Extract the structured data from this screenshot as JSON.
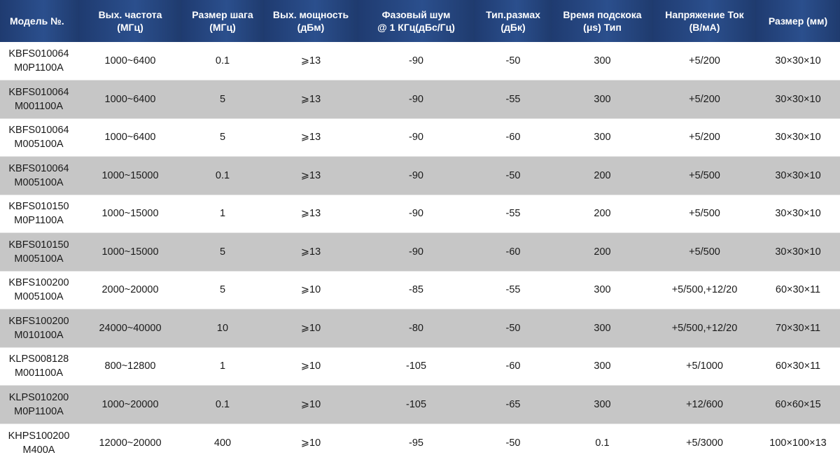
{
  "header": [
    [
      "Модель №."
    ],
    [
      "Вых. частота",
      "(МГц)"
    ],
    [
      "Размер шага",
      "(МГц)"
    ],
    [
      "Вых. мощность",
      "(дБм)"
    ],
    [
      "Фазовый шум",
      "@ 1 КГц(дБс/Гц)"
    ],
    [
      "Тип.размах",
      "(дБк)"
    ],
    [
      "Время подскока",
      "(μs) Тип"
    ],
    [
      "Напряжение Ток",
      "(В/мА)"
    ],
    [
      "Размер (мм)"
    ]
  ],
  "rows": [
    {
      "model": [
        "KBFS010064",
        "M0P1100A"
      ],
      "freq": "1000~6400",
      "step": "0.1",
      "power": "⩾13",
      "phase_noise": "-90",
      "spur": "-50",
      "hop_time": "300",
      "voltage_current": "+5/200",
      "size": "30×30×10"
    },
    {
      "model": [
        "KBFS010064",
        "M001100A"
      ],
      "freq": "1000~6400",
      "step": "5",
      "power": "⩾13",
      "phase_noise": "-90",
      "spur": "-55",
      "hop_time": "300",
      "voltage_current": "+5/200",
      "size": "30×30×10"
    },
    {
      "model": [
        "KBFS010064",
        "M005100A"
      ],
      "freq": "1000~6400",
      "step": "5",
      "power": "⩾13",
      "phase_noise": "-90",
      "spur": "-60",
      "hop_time": "300",
      "voltage_current": "+5/200",
      "size": "30×30×10"
    },
    {
      "model": [
        "KBFS010064",
        "M005100A"
      ],
      "freq": "1000~15000",
      "step": "0.1",
      "power": "⩾13",
      "phase_noise": "-90",
      "spur": "-50",
      "hop_time": "200",
      "voltage_current": "+5/500",
      "size": "30×30×10"
    },
    {
      "model": [
        "KBFS010150",
        "M0P1100A"
      ],
      "freq": "1000~15000",
      "step": "1",
      "power": "⩾13",
      "phase_noise": "-90",
      "spur": "-55",
      "hop_time": "200",
      "voltage_current": "+5/500",
      "size": "30×30×10"
    },
    {
      "model": [
        "KBFS010150",
        "M005100A"
      ],
      "freq": "1000~15000",
      "step": "5",
      "power": "⩾13",
      "phase_noise": "-90",
      "spur": "-60",
      "hop_time": "200",
      "voltage_current": "+5/500",
      "size": "30×30×10"
    },
    {
      "model": [
        "KBFS100200",
        "M005100A"
      ],
      "freq": "2000~20000",
      "step": "5",
      "power": "⩾10",
      "phase_noise": "-85",
      "spur": "-55",
      "hop_time": "300",
      "voltage_current": "+5/500,+12/20",
      "size": "60×30×11"
    },
    {
      "model": [
        "KBFS100200",
        "M010100A"
      ],
      "freq": "24000~40000",
      "step": "10",
      "power": "⩾10",
      "phase_noise": "-80",
      "spur": "-50",
      "hop_time": "300",
      "voltage_current": "+5/500,+12/20",
      "size": "70×30×11"
    },
    {
      "model": [
        "KLPS008128",
        "M001100A"
      ],
      "freq": "800~12800",
      "step": "1",
      "power": "⩾10",
      "phase_noise": "-105",
      "spur": "-60",
      "hop_time": "300",
      "voltage_current": "+5/1000",
      "size": "60×30×11"
    },
    {
      "model": [
        "KLPS010200",
        "M0P1100A"
      ],
      "freq": "1000~20000",
      "step": "0.1",
      "power": "⩾10",
      "phase_noise": "-105",
      "spur": "-65",
      "hop_time": "300",
      "voltage_current": "+12/600",
      "size": "60×60×15"
    },
    {
      "model": [
        "KHPS100200",
        "M400A"
      ],
      "freq": "12000~20000",
      "step": "400",
      "power": "⩾10",
      "phase_noise": "-95",
      "spur": "-50",
      "hop_time": "0.1",
      "voltage_current": "+5/3000",
      "size": "100×100×13"
    }
  ],
  "colors": {
    "header_bg": "#2b4f8d",
    "row_even_bg": "#c6c6c6",
    "row_odd_bg": "#ffffff"
  }
}
